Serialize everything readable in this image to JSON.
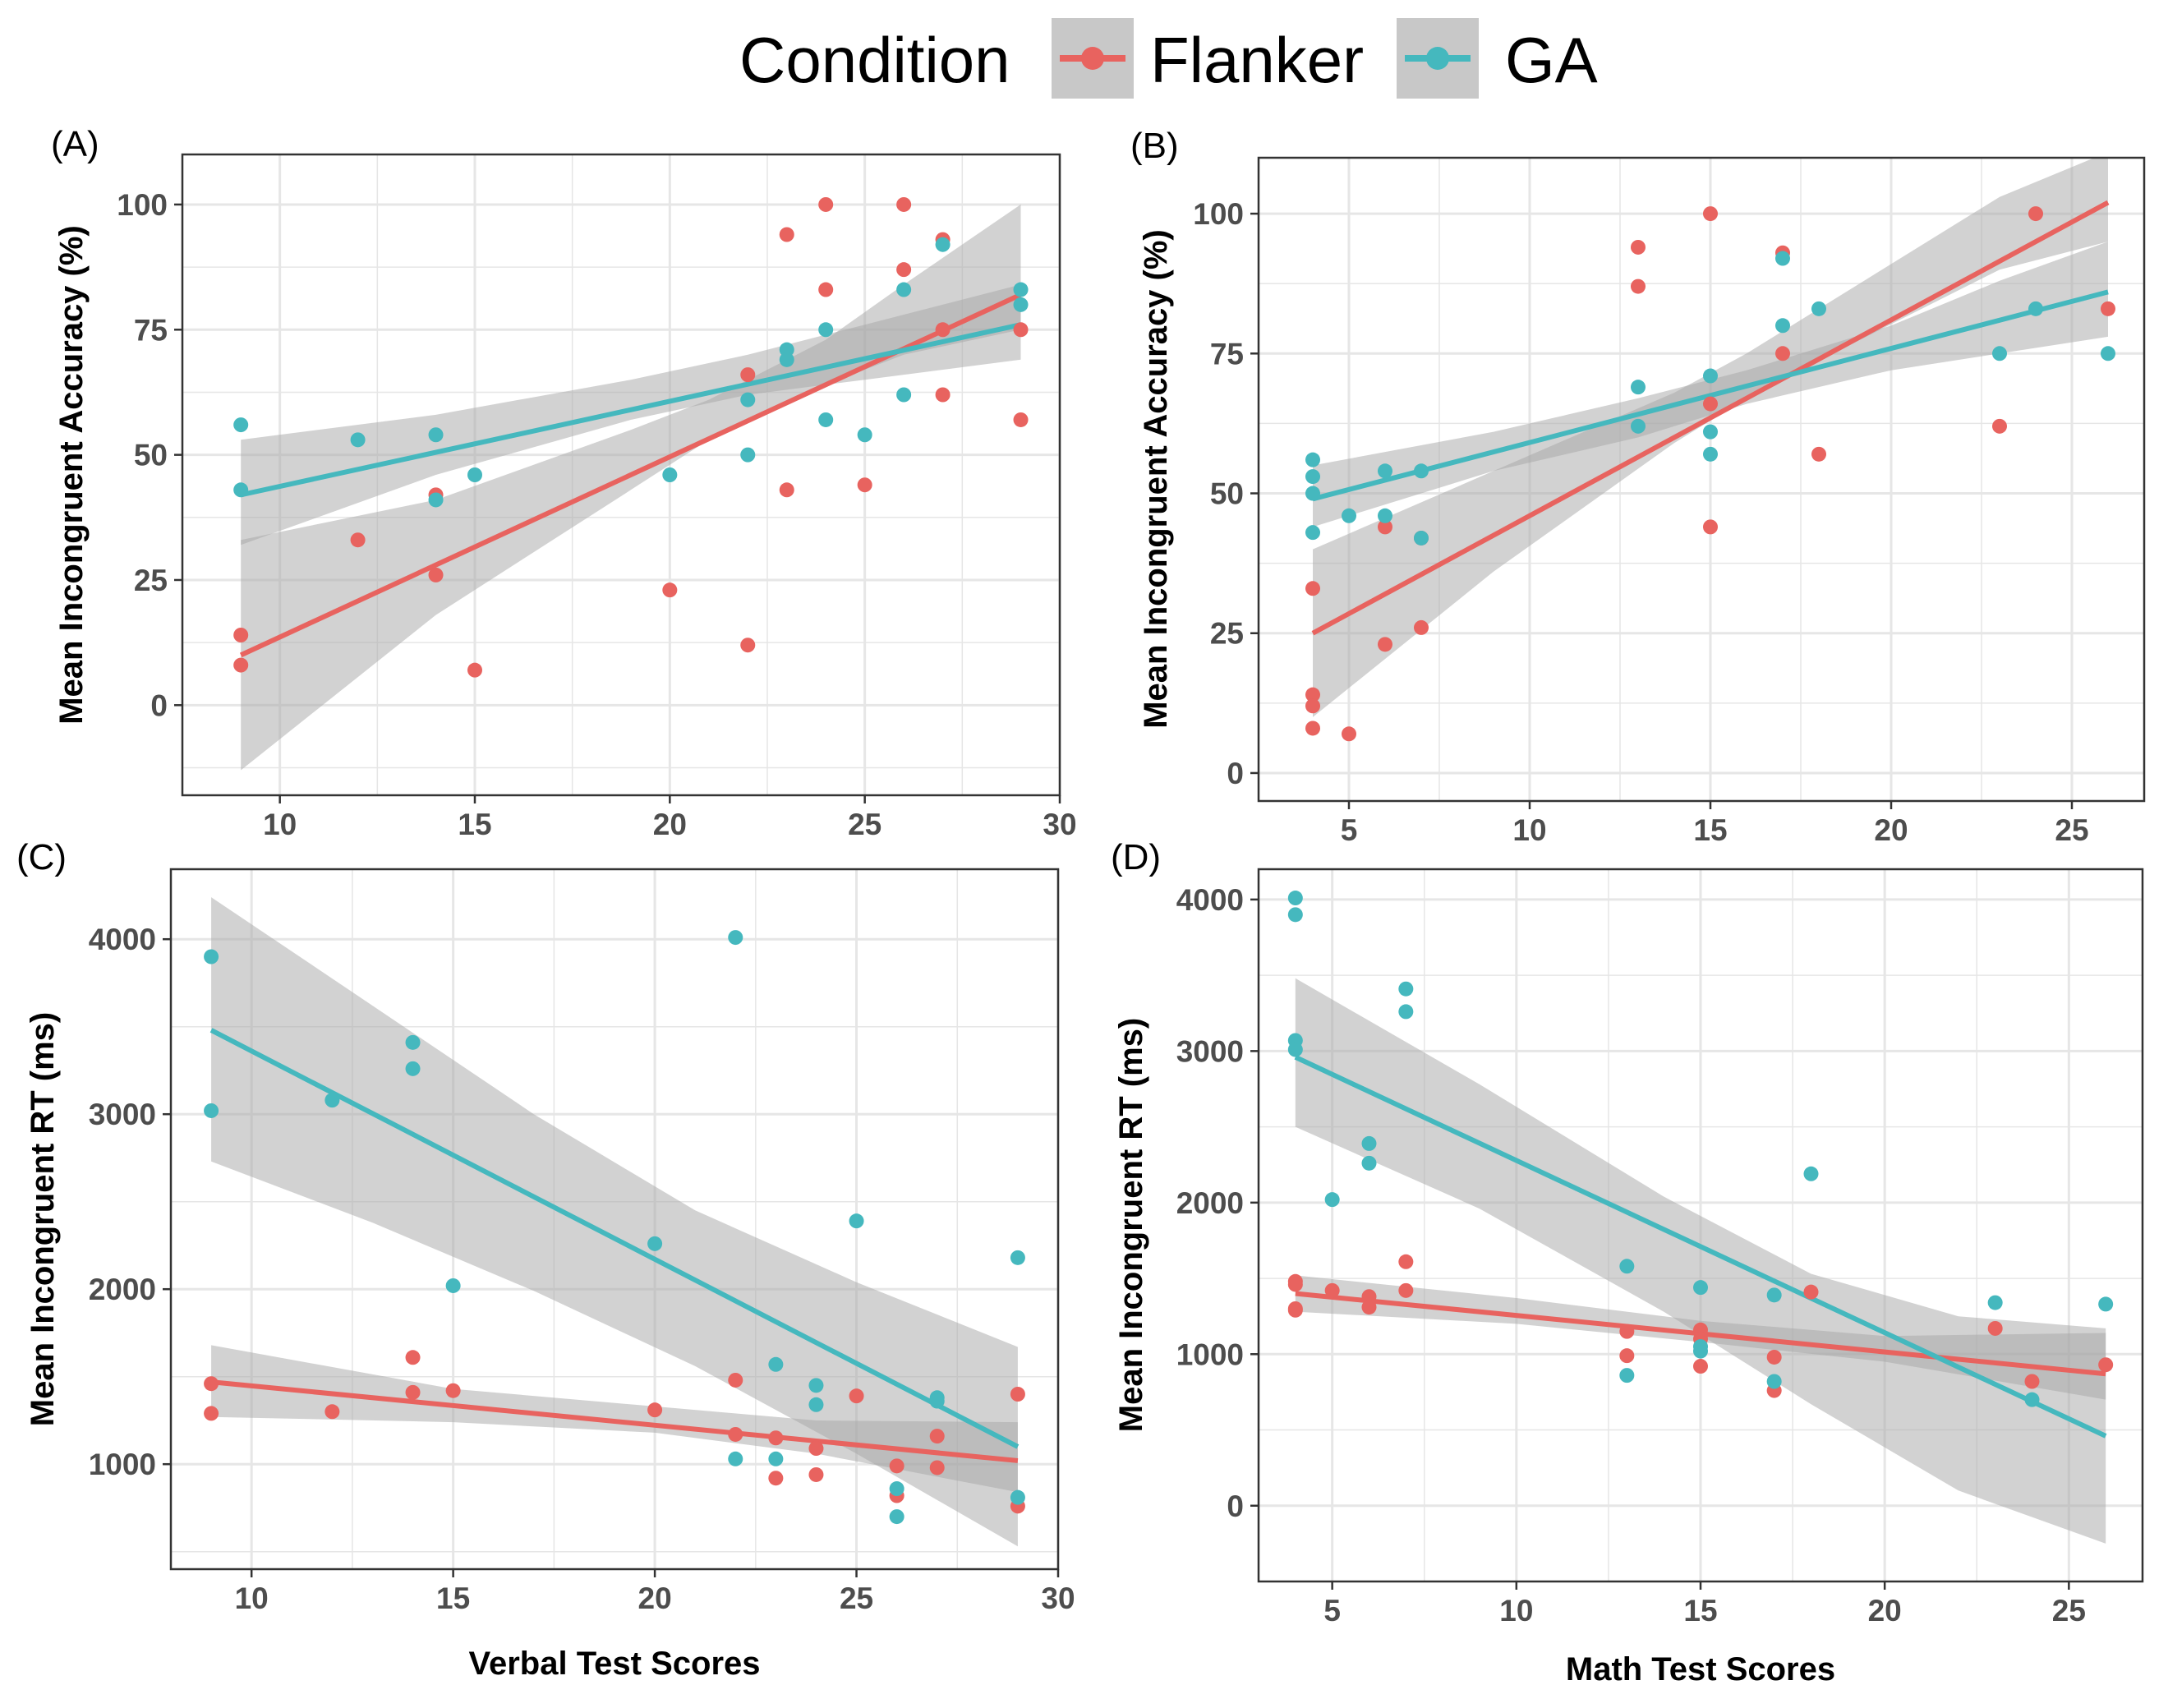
{
  "legend": {
    "title": "Condition",
    "entries": [
      {
        "label": "Flanker",
        "color": "#E8635F"
      },
      {
        "label": "GA",
        "color": "#45B8BE"
      }
    ]
  },
  "colors": {
    "flanker": "#E8635F",
    "ga": "#45B8BE",
    "band": "#a6a6a6",
    "grid": "#e6e6e6",
    "panel_border": "#333333"
  },
  "chart_data": [
    {
      "panel": "(A)",
      "type": "scatter",
      "xlabel": "",
      "ylabel": "Mean Incongruent Accuracy (%)",
      "xlim": [
        7.5,
        30
      ],
      "ylim": [
        -18,
        110
      ],
      "xticks": [
        10,
        15,
        20,
        25,
        30
      ],
      "yticks": [
        0,
        25,
        50,
        75,
        100
      ],
      "grid": true,
      "series": [
        {
          "name": "Flanker",
          "points": [
            [
              9,
              14
            ],
            [
              9,
              8
            ],
            [
              12,
              33
            ],
            [
              14,
              42
            ],
            [
              14,
              26
            ],
            [
              15,
              7
            ],
            [
              20,
              23
            ],
            [
              22,
              66
            ],
            [
              22,
              12
            ],
            [
              23,
              94
            ],
            [
              23,
              43
            ],
            [
              24,
              100
            ],
            [
              24,
              83
            ],
            [
              25,
              44
            ],
            [
              26,
              100
            ],
            [
              26,
              87
            ],
            [
              27,
              93
            ],
            [
              27,
              75
            ],
            [
              27,
              62
            ],
            [
              29,
              75
            ],
            [
              29,
              57
            ]
          ],
          "fit": {
            "x": [
              9,
              29
            ],
            "y": [
              10,
              82
            ]
          },
          "band": {
            "x": [
              9,
              14,
              19,
              21,
              24,
              26,
              29
            ],
            "lower": [
              -13,
              18,
              43,
              53,
              64,
              70,
              75
            ],
            "upper": [
              33,
              41,
              55,
              61,
              73,
              84,
              100
            ]
          }
        },
        {
          "name": "GA",
          "points": [
            [
              9,
              56
            ],
            [
              9,
              43
            ],
            [
              12,
              53
            ],
            [
              14,
              54
            ],
            [
              14,
              41
            ],
            [
              15,
              46
            ],
            [
              20,
              46
            ],
            [
              22,
              61
            ],
            [
              22,
              50
            ],
            [
              23,
              71
            ],
            [
              23,
              69
            ],
            [
              24,
              75
            ],
            [
              24,
              57
            ],
            [
              25,
              54
            ],
            [
              26,
              83
            ],
            [
              26,
              62
            ],
            [
              27,
              92
            ],
            [
              29,
              83
            ],
            [
              29,
              80
            ]
          ],
          "fit": {
            "x": [
              9,
              29
            ],
            "y": [
              42,
              76
            ]
          },
          "band": {
            "x": [
              9,
              14,
              19,
              22,
              25,
              29
            ],
            "lower": [
              32,
              46,
              57,
              62,
              65,
              69
            ],
            "upper": [
              53,
              58,
              65,
              70,
              76,
              84
            ]
          }
        }
      ]
    },
    {
      "panel": "(B)",
      "type": "scatter",
      "xlabel": "",
      "ylabel": "Mean Incongruent Accuracy (%)",
      "xlim": [
        2.5,
        27
      ],
      "ylim": [
        -5,
        110
      ],
      "xticks": [
        5,
        10,
        15,
        20,
        25
      ],
      "yticks": [
        0,
        25,
        50,
        75,
        100
      ],
      "grid": true,
      "series": [
        {
          "name": "Flanker",
          "points": [
            [
              4,
              33
            ],
            [
              4,
              14
            ],
            [
              4,
              12
            ],
            [
              4,
              8
            ],
            [
              5,
              7
            ],
            [
              6,
              44
            ],
            [
              6,
              23
            ],
            [
              7,
              42
            ],
            [
              7,
              26
            ],
            [
              13,
              94
            ],
            [
              13,
              87
            ],
            [
              15,
              100
            ],
            [
              15,
              66
            ],
            [
              15,
              44
            ],
            [
              17,
              93
            ],
            [
              17,
              75
            ],
            [
              18,
              57
            ],
            [
              23,
              62
            ],
            [
              24,
              100
            ],
            [
              26,
              83
            ]
          ],
          "fit": {
            "x": [
              4,
              26
            ],
            "y": [
              25,
              102
            ]
          },
          "band": {
            "x": [
              4,
              9,
              14,
              16,
              19,
              23,
              26
            ],
            "lower": [
              10,
              36,
              59,
              67,
              77,
              90,
              95
            ],
            "upper": [
              40,
              54,
              68,
              75,
              87,
              103,
              111
            ]
          }
        },
        {
          "name": "GA",
          "points": [
            [
              4,
              56
            ],
            [
              4,
              53
            ],
            [
              4,
              50
            ],
            [
              4,
              43
            ],
            [
              5,
              46
            ],
            [
              6,
              54
            ],
            [
              6,
              46
            ],
            [
              7,
              54
            ],
            [
              7,
              42
            ],
            [
              13,
              69
            ],
            [
              13,
              62
            ],
            [
              15,
              71
            ],
            [
              15,
              61
            ],
            [
              15,
              57
            ],
            [
              17,
              92
            ],
            [
              17,
              80
            ],
            [
              18,
              83
            ],
            [
              23,
              75
            ],
            [
              24,
              83
            ],
            [
              26,
              75
            ]
          ],
          "fit": {
            "x": [
              4,
              26
            ],
            "y": [
              49,
              86
            ]
          },
          "band": {
            "x": [
              4,
              9,
              13,
              16,
              20,
              23,
              26
            ],
            "lower": [
              44,
              54,
              60,
              66,
              72,
              75,
              78
            ],
            "upper": [
              55,
              61,
              67,
              72,
              80,
              88,
              95
            ]
          }
        }
      ]
    },
    {
      "panel": "(C)",
      "type": "scatter",
      "xlabel": "Verbal Test Scores",
      "ylabel": "Mean Incongruent RT (ms)",
      "xlim": [
        8,
        30
      ],
      "ylim": [
        400,
        4400
      ],
      "xticks": [
        10,
        15,
        20,
        25,
        30
      ],
      "yticks": [
        1000,
        2000,
        3000,
        4000
      ],
      "grid": true,
      "series": [
        {
          "name": "Flanker",
          "points": [
            [
              9,
              1460
            ],
            [
              9,
              1290
            ],
            [
              12,
              1300
            ],
            [
              14,
              1610
            ],
            [
              14,
              1410
            ],
            [
              15,
              1420
            ],
            [
              20,
              1310
            ],
            [
              22,
              1480
            ],
            [
              22,
              1170
            ],
            [
              23,
              1150
            ],
            [
              23,
              920
            ],
            [
              24,
              1090
            ],
            [
              24,
              940
            ],
            [
              25,
              1390
            ],
            [
              26,
              990
            ],
            [
              26,
              820
            ],
            [
              27,
              1160
            ],
            [
              27,
              980
            ],
            [
              29,
              1400
            ],
            [
              29,
              760
            ]
          ],
          "fit": {
            "x": [
              9,
              29
            ],
            "y": [
              1470,
              1020
            ]
          },
          "band": {
            "x": [
              9,
              15,
              20,
              24,
              29
            ],
            "lower": [
              1270,
              1240,
              1180,
              1060,
              840
            ],
            "upper": [
              1680,
              1430,
              1330,
              1250,
              1240
            ]
          }
        },
        {
          "name": "GA",
          "points": [
            [
              9,
              3900
            ],
            [
              9,
              3020
            ],
            [
              12,
              3080
            ],
            [
              14,
              3410
            ],
            [
              14,
              3260
            ],
            [
              15,
              2020
            ],
            [
              20,
              2260
            ],
            [
              22,
              4010
            ],
            [
              22,
              1030
            ],
            [
              23,
              1570
            ],
            [
              23,
              1030
            ],
            [
              24,
              1450
            ],
            [
              24,
              1340
            ],
            [
              25,
              2390
            ],
            [
              26,
              860
            ],
            [
              26,
              700
            ],
            [
              27,
              1380
            ],
            [
              27,
              1360
            ],
            [
              29,
              2180
            ],
            [
              29,
              810
            ]
          ],
          "fit": {
            "x": [
              9,
              29
            ],
            "y": [
              3480,
              1100
            ]
          },
          "band": {
            "x": [
              9,
              13,
              17,
              21,
              25,
              29
            ],
            "lower": [
              2730,
              2380,
              1990,
              1560,
              1060,
              530
            ],
            "upper": [
              4240,
              3620,
              3000,
              2450,
              2040,
              1670
            ]
          }
        }
      ]
    },
    {
      "panel": "(D)",
      "type": "scatter",
      "xlabel": "Math Test Scores",
      "ylabel": "Mean Incongruent RT (ms)",
      "xlim": [
        3,
        27
      ],
      "ylim": [
        -500,
        4200
      ],
      "xticks": [
        5,
        10,
        15,
        20,
        25
      ],
      "yticks": [
        0,
        1000,
        2000,
        3000,
        4000
      ],
      "grid": true,
      "series": [
        {
          "name": "Flanker",
          "points": [
            [
              4,
              1480
            ],
            [
              4,
              1460
            ],
            [
              4,
              1300
            ],
            [
              4,
              1290
            ],
            [
              5,
              1420
            ],
            [
              6,
              1380
            ],
            [
              6,
              1310
            ],
            [
              7,
              1610
            ],
            [
              7,
              1420
            ],
            [
              13,
              1150
            ],
            [
              13,
              990
            ],
            [
              15,
              1160
            ],
            [
              15,
              1100
            ],
            [
              15,
              920
            ],
            [
              17,
              980
            ],
            [
              17,
              760
            ],
            [
              18,
              1410
            ],
            [
              23,
              1170
            ],
            [
              24,
              820
            ],
            [
              26,
              930
            ]
          ],
          "fit": {
            "x": [
              4,
              26
            ],
            "y": [
              1400,
              870
            ]
          },
          "band": {
            "x": [
              4,
              10,
              15,
              20,
              26
            ],
            "lower": [
              1280,
              1200,
              1080,
              950,
              700
            ],
            "upper": [
              1520,
              1370,
              1220,
              1120,
              1140
            ]
          }
        },
        {
          "name": "GA",
          "points": [
            [
              4,
              4010
            ],
            [
              4,
              3900
            ],
            [
              4,
              3070
            ],
            [
              4,
              3010
            ],
            [
              5,
              2020
            ],
            [
              6,
              2390
            ],
            [
              6,
              2260
            ],
            [
              7,
              3410
            ],
            [
              7,
              3260
            ],
            [
              13,
              1580
            ],
            [
              13,
              860
            ],
            [
              15,
              1440
            ],
            [
              15,
              1050
            ],
            [
              15,
              1020
            ],
            [
              17,
              1390
            ],
            [
              17,
              820
            ],
            [
              18,
              2190
            ],
            [
              23,
              1340
            ],
            [
              24,
              700
            ],
            [
              26,
              1330
            ]
          ],
          "fit": {
            "x": [
              4,
              26
            ],
            "y": [
              2960,
              460
            ]
          },
          "band": {
            "x": [
              4,
              9,
              14,
              18,
              22,
              26
            ],
            "lower": [
              2500,
              1960,
              1280,
              670,
              100,
              -250
            ],
            "upper": [
              3480,
              2780,
              2040,
              1530,
              1250,
              1170
            ]
          }
        }
      ]
    }
  ]
}
